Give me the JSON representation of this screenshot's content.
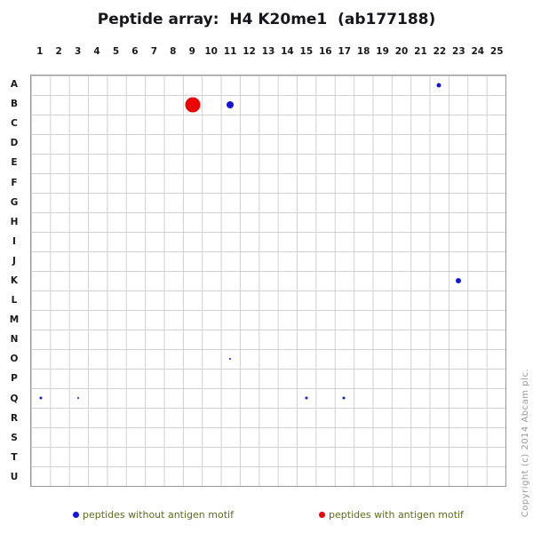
{
  "title": "Peptide array:  H4 K20me1  (ab177188)",
  "copyright": "Copyright (c) 2014 Abcam plc.",
  "colors": {
    "blue": "#1414dc",
    "red": "#ee0000",
    "grid_line": "#d0d0d0",
    "grid_border": "#999999",
    "title_text": "#16161c",
    "axis_label_text": "#1a1a1a",
    "legend_text": "#5e6b1e",
    "copyright_text": "#9a9a9a"
  },
  "chart_data": {
    "type": "scatter",
    "title": "Peptide array:  H4 K20me1  (ab177188)",
    "columns": [
      "1",
      "2",
      "3",
      "4",
      "5",
      "6",
      "7",
      "8",
      "9",
      "10",
      "11",
      "12",
      "13",
      "14",
      "15",
      "16",
      "17",
      "18",
      "19",
      "20",
      "21",
      "22",
      "23",
      "24",
      "25"
    ],
    "rows": [
      "A",
      "B",
      "C",
      "D",
      "E",
      "F",
      "G",
      "H",
      "I",
      "J",
      "K",
      "L",
      "M",
      "N",
      "O",
      "P",
      "Q",
      "R",
      "S",
      "T",
      "U"
    ],
    "grid": "on",
    "legend_position": "bottom",
    "points": [
      {
        "row": "A",
        "col": 22,
        "color": "blue",
        "size": 5
      },
      {
        "row": "B",
        "col": 9,
        "color": "red",
        "size": 17
      },
      {
        "row": "B",
        "col": 11,
        "color": "blue",
        "size": 8
      },
      {
        "row": "K",
        "col": 23,
        "color": "blue",
        "size": 6
      },
      {
        "row": "O",
        "col": 11,
        "color": "blue",
        "size": 2
      },
      {
        "row": "Q",
        "col": 1,
        "color": "blue",
        "size": 3
      },
      {
        "row": "Q",
        "col": 3,
        "color": "blue",
        "size": 2
      },
      {
        "row": "Q",
        "col": 15,
        "color": "blue",
        "size": 3
      },
      {
        "row": "Q",
        "col": 17,
        "color": "blue",
        "size": 3
      }
    ],
    "legend": [
      {
        "label": "peptides without antigen motif",
        "color": "blue"
      },
      {
        "label": "peptides with antigen motif",
        "color": "red"
      }
    ]
  }
}
